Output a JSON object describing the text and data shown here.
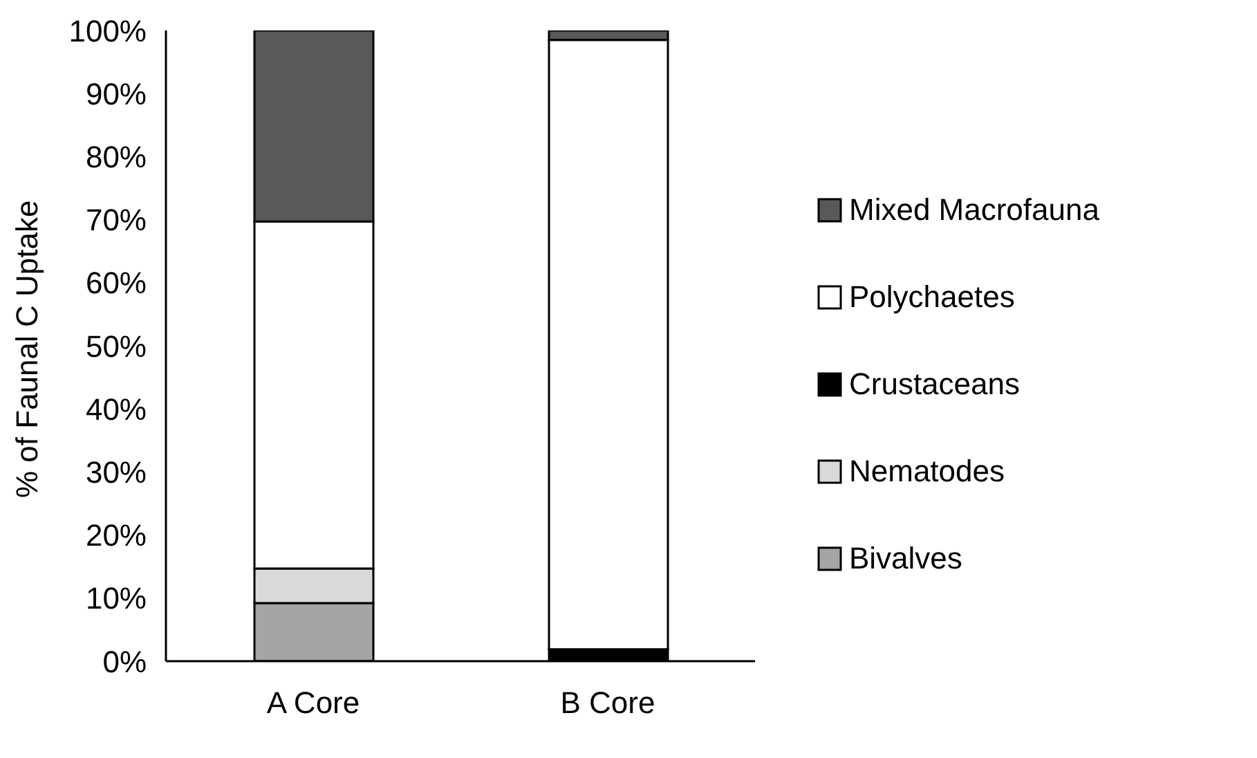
{
  "chart_data": {
    "type": "bar",
    "stacked": true,
    "ylabel": "% of Faunal C Uptake",
    "categories": [
      "A Core",
      "B Core"
    ],
    "series": [
      {
        "name": "Bivalves",
        "color": "#a5a5a5",
        "values": [
          9.2,
          0
        ]
      },
      {
        "name": "Nematodes",
        "color": "#d9d9d9",
        "values": [
          5.5,
          0
        ]
      },
      {
        "name": "Crustaceans",
        "color": "#000000",
        "values": [
          0,
          1.9
        ]
      },
      {
        "name": "Polychaetes",
        "color": "#ffffff",
        "values": [
          55.0,
          96.6
        ]
      },
      {
        "name": "Mixed Macrofauna",
        "color": "#595959",
        "values": [
          30.3,
          1.5
        ]
      }
    ],
    "ylim": [
      0,
      100
    ],
    "yticks": [
      {
        "value": 0,
        "label": "0%"
      },
      {
        "value": 10,
        "label": "10%"
      },
      {
        "value": 20,
        "label": "20%"
      },
      {
        "value": 30,
        "label": "30%"
      },
      {
        "value": 40,
        "label": "40%"
      },
      {
        "value": 50,
        "label": "50%"
      },
      {
        "value": 60,
        "label": "60%"
      },
      {
        "value": 70,
        "label": "70%"
      },
      {
        "value": 80,
        "label": "80%"
      },
      {
        "value": 90,
        "label": "90%"
      },
      {
        "value": 100,
        "label": "100%"
      }
    ],
    "legend": "right",
    "grid": false
  }
}
